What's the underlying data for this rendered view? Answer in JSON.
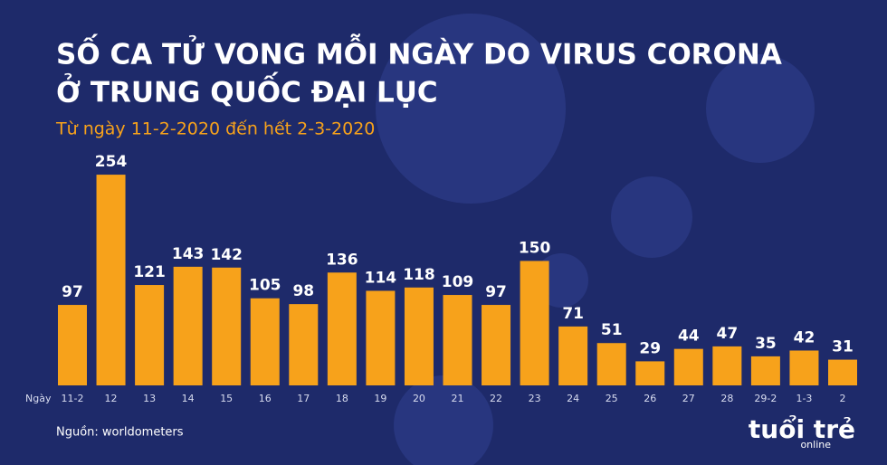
{
  "chart_data": {
    "type": "bar",
    "title": [
      "SỐ CA TỬ VONG MỖI NGÀY DO VIRUS CORONA",
      "Ở TRUNG QUỐC ĐẠI LỤC"
    ],
    "subtitle": "Từ ngày 11-2-2020 đến hết 2-3-2020",
    "x_label": "Ngày",
    "categories": [
      "11-2",
      "12",
      "13",
      "14",
      "15",
      "16",
      "17",
      "18",
      "19",
      "20",
      "21",
      "22",
      "23",
      "24",
      "25",
      "26",
      "27",
      "28",
      "29-2",
      "1-3",
      "2"
    ],
    "values": [
      97,
      254,
      121,
      143,
      142,
      105,
      98,
      136,
      114,
      118,
      109,
      97,
      150,
      71,
      51,
      29,
      44,
      47,
      35,
      42,
      31
    ],
    "color": "#f7a21b",
    "source": "Nguồn: worldometers",
    "logo": {
      "main": "tuổi trẻ",
      "sub": "online"
    }
  }
}
